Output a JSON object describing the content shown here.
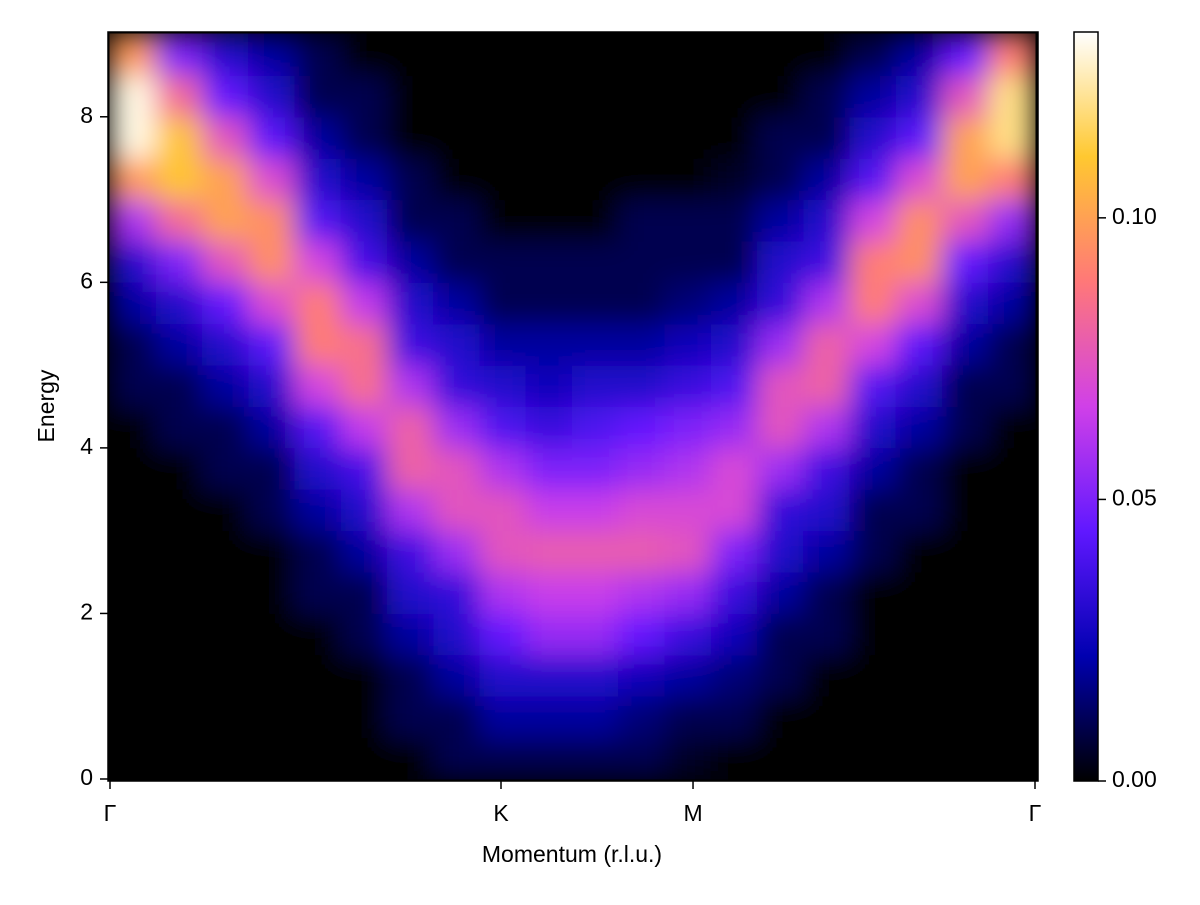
{
  "chart_data": {
    "type": "heatmap",
    "xlabel": "Momentum (r.l.u.)",
    "ylabel": "Energy",
    "xlim": [
      0,
      1
    ],
    "xticks": [
      {
        "value": 0,
        "label": "Γ"
      },
      {
        "value": 0.4227,
        "label": "K"
      },
      {
        "value": 0.6303,
        "label": "M"
      },
      {
        "value": 1,
        "label": "Γ"
      }
    ],
    "ylim": [
      0,
      9
    ],
    "yticks": [
      0,
      2,
      4,
      6,
      8
    ],
    "zlim": [
      0,
      0.133
    ],
    "zticks": [
      {
        "value": 0,
        "label": "0.00"
      },
      {
        "value": 0.05,
        "label": "0.05"
      },
      {
        "value": 0.1,
        "label": "0.10"
      }
    ],
    "colormap": [
      "#000000",
      "#0000b0",
      "#6018ff",
      "#d040e8",
      "#ff7878",
      "#ffc830",
      "#ffffff"
    ],
    "x": [
      0.025,
      0.075,
      0.125,
      0.175,
      0.225,
      0.275,
      0.325,
      0.375,
      0.425,
      0.475,
      0.525,
      0.575,
      0.625,
      0.675,
      0.725,
      0.775,
      0.825,
      0.875,
      0.925,
      0.975
    ],
    "y": [
      0.25,
      0.75,
      1.25,
      1.75,
      2.25,
      2.75,
      3.25,
      3.75,
      4.25,
      4.75,
      5.25,
      5.75,
      6.25,
      6.75,
      7.25,
      7.75,
      8.25,
      8.75
    ],
    "z": [
      [
        0,
        0,
        0,
        0,
        0,
        0,
        0,
        0,
        0,
        0.01,
        0.01,
        0.02,
        0.03,
        0.059,
        0.098,
        0.13,
        0.13,
        0.098
      ],
      [
        0,
        0,
        0,
        0,
        0,
        0,
        0,
        0,
        0.01,
        0.01,
        0.02,
        0.03,
        0.05,
        0.083,
        0.11,
        0.11,
        0.083,
        0.05
      ],
      [
        0,
        0,
        0,
        0,
        0,
        0,
        0,
        0.01,
        0.01,
        0.02,
        0.03,
        0.045,
        0.075,
        0.1,
        0.1,
        0.075,
        0.045,
        0.03
      ],
      [
        0,
        0,
        0,
        0,
        0,
        0,
        0.01,
        0.01,
        0.02,
        0.03,
        0.043,
        0.071,
        0.095,
        0.095,
        0.071,
        0.043,
        0.03,
        0.02
      ],
      [
        0,
        0,
        0,
        0,
        0.01,
        0.01,
        0.02,
        0.03,
        0.041,
        0.068,
        0.09,
        0.09,
        0.068,
        0.041,
        0.03,
        0.02,
        0.01,
        0.01
      ],
      [
        0,
        0,
        0,
        0.01,
        0.01,
        0.02,
        0.03,
        0.038,
        0.064,
        0.085,
        0.085,
        0.064,
        0.038,
        0.03,
        0.02,
        0.01,
        0.01,
        0
      ],
      [
        0,
        0.01,
        0.01,
        0.02,
        0.03,
        0.036,
        0.06,
        0.08,
        0.08,
        0.06,
        0.036,
        0.03,
        0.02,
        0.01,
        0.01,
        0,
        0,
        0
      ],
      [
        0.01,
        0.01,
        0.02,
        0.03,
        0.034,
        0.056,
        0.075,
        0.075,
        0.056,
        0.034,
        0.03,
        0.02,
        0.01,
        0.01,
        0,
        0,
        0,
        0
      ],
      [
        0.01,
        0.02,
        0.03,
        0.045,
        0.06,
        0.075,
        0.075,
        0.06,
        0.04,
        0.03,
        0.02,
        0.01,
        0.01,
        0,
        0,
        0,
        0,
        0
      ],
      [
        0.01,
        0.02,
        0.03,
        0.055,
        0.065,
        0.078,
        0.065,
        0.05,
        0.035,
        0.025,
        0.02,
        0.01,
        0.01,
        0,
        0,
        0,
        0,
        0
      ],
      [
        0.01,
        0.02,
        0.03,
        0.055,
        0.065,
        0.078,
        0.065,
        0.05,
        0.04,
        0.03,
        0.02,
        0.01,
        0.01,
        0,
        0,
        0,
        0,
        0
      ],
      [
        0.01,
        0.015,
        0.025,
        0.045,
        0.06,
        0.078,
        0.07,
        0.055,
        0.045,
        0.03,
        0.02,
        0.01,
        0.01,
        0.01,
        0,
        0,
        0,
        0
      ],
      [
        0.005,
        0.01,
        0.02,
        0.035,
        0.055,
        0.075,
        0.07,
        0.06,
        0.05,
        0.035,
        0.025,
        0.015,
        0.01,
        0.01,
        0,
        0,
        0,
        0
      ],
      [
        0,
        0.01,
        0.015,
        0.025,
        0.035,
        0.05,
        0.07,
        0.07,
        0.055,
        0.04,
        0.03,
        0.02,
        0.01,
        0.01,
        0.005,
        0,
        0,
        0
      ],
      [
        0,
        0,
        0.01,
        0.01,
        0.02,
        0.03,
        0.034,
        0.056,
        0.075,
        0.075,
        0.056,
        0.034,
        0.03,
        0.02,
        0.01,
        0.01,
        0,
        0
      ],
      [
        0,
        0,
        0,
        0.01,
        0.01,
        0.02,
        0.03,
        0.036,
        0.06,
        0.08,
        0.08,
        0.06,
        0.036,
        0.03,
        0.02,
        0.01,
        0.01,
        0
      ],
      [
        0,
        0,
        0,
        0,
        0,
        0.01,
        0.01,
        0.02,
        0.03,
        0.041,
        0.068,
        0.09,
        0.09,
        0.068,
        0.041,
        0.03,
        0.02,
        0.01
      ],
      [
        0,
        0,
        0,
        0,
        0,
        0,
        0.01,
        0.01,
        0.02,
        0.03,
        0.043,
        0.071,
        0.095,
        0.095,
        0.071,
        0.043,
        0.03,
        0.02
      ],
      [
        0,
        0,
        0,
        0,
        0,
        0,
        0,
        0,
        0.01,
        0.01,
        0.02,
        0.03,
        0.045,
        0.075,
        0.1,
        0.1,
        0.075,
        0.045
      ],
      [
        0,
        0,
        0,
        0,
        0,
        0,
        0,
        0,
        0,
        0.01,
        0.01,
        0.02,
        0.03,
        0.054,
        0.09,
        0.12,
        0.12,
        0.09
      ]
    ]
  }
}
